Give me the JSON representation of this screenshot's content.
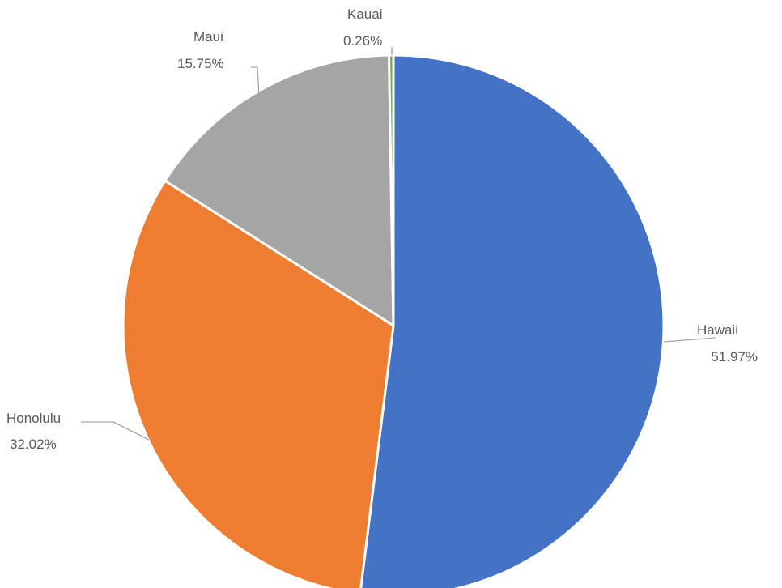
{
  "chart_data": {
    "type": "pie",
    "title": "",
    "slices": [
      {
        "name": "Hawaii",
        "value": 51.97,
        "label": "51.97%",
        "color": "#4472C4"
      },
      {
        "name": "Honolulu",
        "value": 32.02,
        "label": "32.02%",
        "color": "#ED7D31"
      },
      {
        "name": "Maui",
        "value": 15.75,
        "label": "15.75%",
        "color": "#A5A5A5"
      },
      {
        "name": "Kauai",
        "value": 0.26,
        "label": "0.26%",
        "color": "#70AD47"
      }
    ],
    "start_angle": "12 o'clock",
    "direction": "clockwise",
    "legend": "none",
    "data_labels": "outside with leader lines"
  }
}
